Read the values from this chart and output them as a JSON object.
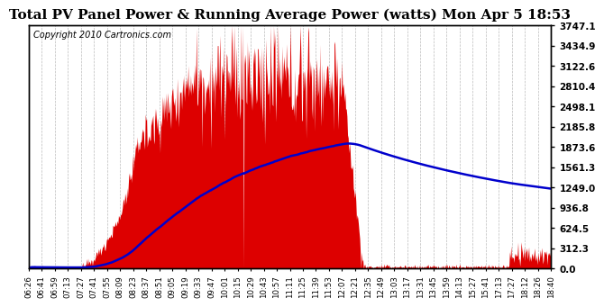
{
  "title": "Total PV Panel Power & Running Average Power (watts) Mon Apr 5 18:53",
  "copyright": "Copyright 2010 Cartronics.com",
  "y_ticks": [
    0.0,
    312.3,
    624.5,
    936.8,
    1249.0,
    1561.3,
    1873.6,
    2185.8,
    2498.1,
    2810.4,
    3122.6,
    3434.9,
    3747.1
  ],
  "x_labels": [
    "06:26",
    "06:41",
    "06:59",
    "07:13",
    "07:27",
    "07:41",
    "07:55",
    "08:09",
    "08:23",
    "08:37",
    "08:51",
    "09:05",
    "09:19",
    "09:33",
    "09:47",
    "10:01",
    "10:15",
    "10:29",
    "10:43",
    "10:57",
    "11:11",
    "11:25",
    "11:39",
    "11:53",
    "12:07",
    "12:21",
    "12:35",
    "12:49",
    "13:03",
    "13:17",
    "13:31",
    "13:45",
    "13:59",
    "14:13",
    "15:27",
    "15:41",
    "17:13",
    "17:27",
    "18:12",
    "18:26",
    "18:40"
  ],
  "bar_color": "#dd0000",
  "line_color": "#0000cc",
  "background_color": "#ffffff",
  "grid_color": "#bbbbbb",
  "title_fontsize": 11,
  "copyright_fontsize": 7,
  "y_max": 3747.1,
  "y_min": 0.0,
  "n_points": 820
}
